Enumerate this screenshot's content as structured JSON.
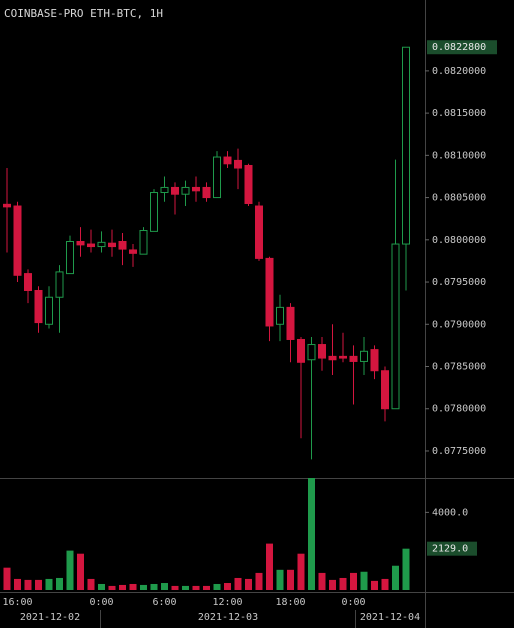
{
  "chart_data": {
    "type": "candlestick",
    "title": "COINBASE-PRO ETH-BTC, 1H",
    "categories": [
      null,
      "16:00",
      null,
      null,
      null,
      null,
      null,
      null,
      null,
      "0:00",
      null,
      null,
      null,
      null,
      null,
      "6:00",
      null,
      null,
      null,
      null,
      null,
      "12:00",
      null,
      null,
      null,
      null,
      null,
      "18:00",
      null,
      null,
      null,
      null,
      null,
      "0:00",
      null,
      null,
      null,
      null,
      null
    ],
    "open": [
      0.08042,
      0.0804,
      0.0796,
      0.0794,
      0.079,
      0.07932,
      0.0796,
      0.07998,
      0.07995,
      0.07992,
      0.07996,
      0.07998,
      0.07988,
      0.07983,
      0.0801,
      0.08056,
      0.08062,
      0.08054,
      0.08062,
      0.08062,
      0.0805,
      0.08098,
      0.08094,
      0.08088,
      0.0804,
      0.07978,
      0.079,
      0.0792,
      0.07882,
      0.07858,
      0.07876,
      0.07862,
      0.07862,
      0.07862,
      0.07856,
      0.0787,
      0.07845,
      0.078,
      0.07995
    ],
    "high": [
      0.08085,
      0.08045,
      0.07965,
      0.07945,
      0.07945,
      0.0797,
      0.08005,
      0.08015,
      0.08012,
      0.0801,
      0.08012,
      0.08008,
      0.07995,
      0.08015,
      0.0806,
      0.08075,
      0.08068,
      0.0807,
      0.08075,
      0.08068,
      0.08105,
      0.08105,
      0.08108,
      0.0809,
      0.08045,
      0.0798,
      0.07935,
      0.07925,
      0.07885,
      0.07885,
      0.07885,
      0.079,
      0.0789,
      0.07875,
      0.07885,
      0.07875,
      0.0785,
      0.08095,
      0.08228
    ],
    "low": [
      0.07985,
      0.0795,
      0.07925,
      0.0789,
      0.07895,
      0.0789,
      0.0796,
      0.0798,
      0.07985,
      0.07985,
      0.0798,
      0.0797,
      0.07968,
      0.07983,
      0.0801,
      0.08045,
      0.0803,
      0.0804,
      0.08045,
      0.08045,
      0.0805,
      0.08085,
      0.0806,
      0.0804,
      0.07975,
      0.0788,
      0.0788,
      0.07855,
      0.07765,
      0.0774,
      0.07845,
      0.0784,
      0.07855,
      0.07805,
      0.0784,
      0.07835,
      0.07785,
      0.078,
      0.0794
    ],
    "close": [
      0.08039,
      0.07958,
      0.0794,
      0.07902,
      0.07932,
      0.07962,
      0.07998,
      0.07994,
      0.07992,
      0.07997,
      0.07992,
      0.07989,
      0.07984,
      0.08011,
      0.08056,
      0.08062,
      0.08054,
      0.08062,
      0.08058,
      0.0805,
      0.08098,
      0.0809,
      0.08085,
      0.08043,
      0.07978,
      0.07898,
      0.0792,
      0.07882,
      0.07855,
      0.07876,
      0.0786,
      0.07858,
      0.0786,
      0.07856,
      0.07868,
      0.07845,
      0.078,
      0.07995,
      0.08228
    ],
    "volume": [
      1150,
      570,
      520,
      520,
      570,
      620,
      2030,
      1870,
      570,
      310,
      210,
      260,
      310,
      260,
      310,
      360,
      210,
      210,
      210,
      210,
      310,
      360,
      620,
      570,
      880,
      2390,
      1040,
      1040,
      1870,
      5770,
      880,
      520,
      620,
      880,
      940,
      470,
      570,
      1250,
      2129
    ],
    "up_color": "#1f9a4b",
    "down_color": "#d4163f",
    "ylim": [
      0.07718,
      0.08278
    ],
    "yticks": [
      {
        "value": 0.0775,
        "label": "0.0775000"
      },
      {
        "value": 0.078,
        "label": "0.0780000"
      },
      {
        "value": 0.0785,
        "label": "0.0785000"
      },
      {
        "value": 0.079,
        "label": "0.0790000"
      },
      {
        "value": 0.0795,
        "label": "0.0795000"
      },
      {
        "value": 0.08,
        "label": "0.0800000"
      },
      {
        "value": 0.0805,
        "label": "0.0805000"
      },
      {
        "value": 0.081,
        "label": "0.0810000"
      },
      {
        "value": 0.0815,
        "label": "0.0815000"
      },
      {
        "value": 0.082,
        "label": "0.0820000"
      }
    ],
    "last_price_label": "0.0822800",
    "volume_ylim": [
      0,
      5770
    ],
    "volume_yticks": [
      {
        "value": 4000,
        "label": "4000.0"
      }
    ],
    "last_volume_label": "2129.0",
    "date_labels": [
      "2021-12-02",
      "2021-12-03",
      "2021-12-04"
    ]
  }
}
